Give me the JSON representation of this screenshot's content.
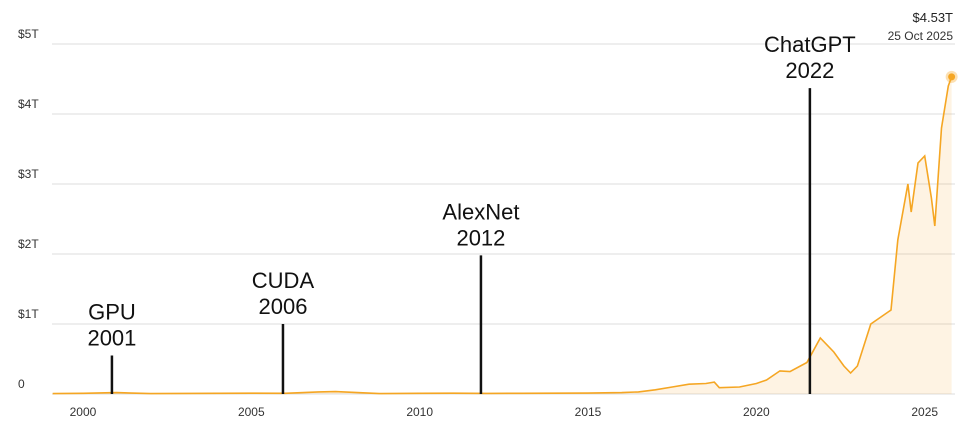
{
  "chart_data": {
    "type": "line",
    "x": [
      1999.1,
      2000,
      2001,
      2002,
      2003,
      2004,
      2005,
      2006,
      2007,
      2007.5,
      2008.8,
      2010,
      2011,
      2012,
      2013,
      2014,
      2015,
      2016,
      2016.5,
      2017,
      2017.5,
      2018,
      2018.5,
      2018.75,
      2018.9,
      2019.5,
      2020,
      2020.3,
      2020.7,
      2021,
      2021.5,
      2021.9,
      2022.3,
      2022.6,
      2022.8,
      2023,
      2023.4,
      2023.7,
      2024,
      2024.2,
      2024.5,
      2024.6,
      2024.8,
      2025,
      2025.2,
      2025.3,
      2025.5,
      2025.7,
      2025.8
    ],
    "values": [
      0.005,
      0.01,
      0.02,
      0.005,
      0.008,
      0.01,
      0.012,
      0.01,
      0.03,
      0.035,
      0.005,
      0.01,
      0.012,
      0.008,
      0.01,
      0.012,
      0.013,
      0.02,
      0.03,
      0.06,
      0.1,
      0.14,
      0.15,
      0.17,
      0.09,
      0.1,
      0.15,
      0.2,
      0.33,
      0.32,
      0.45,
      0.8,
      0.6,
      0.4,
      0.3,
      0.4,
      1.0,
      1.1,
      1.2,
      2.2,
      3.0,
      2.6,
      3.3,
      3.4,
      2.8,
      2.4,
      3.8,
      4.4,
      4.53
    ],
    "color": "#f5a623",
    "xlim": [
      1999.08,
      2025.9
    ],
    "xticks": [
      2000,
      2005,
      2010,
      2015,
      2020,
      2025
    ],
    "ylim": [
      0,
      5
    ],
    "yticks": [
      0,
      {
        "value": 1,
        "label": "$1T"
      },
      {
        "value": 2,
        "label": "$2T"
      },
      {
        "value": 3,
        "label": "$3T"
      },
      {
        "value": 4,
        "label": "$4T"
      },
      {
        "value": 5,
        "label": "$5T"
      }
    ],
    "grid": true,
    "end_point": {
      "x": 2025.8,
      "value": 4.53,
      "label": "$4.53T",
      "date": "25 Oct 2025"
    },
    "annotations": [
      {
        "x": 2000.86,
        "value": 0.55,
        "lines": [
          "GPU",
          "2001"
        ]
      },
      {
        "x": 2005.94,
        "value": 1.0,
        "lines": [
          "CUDA",
          "2006"
        ]
      },
      {
        "x": 2011.82,
        "value": 1.98,
        "lines": [
          "AlexNet",
          "2012"
        ]
      },
      {
        "x": 2021.59,
        "value": 4.37,
        "lines": [
          "ChatGPT",
          "2022"
        ]
      }
    ]
  }
}
